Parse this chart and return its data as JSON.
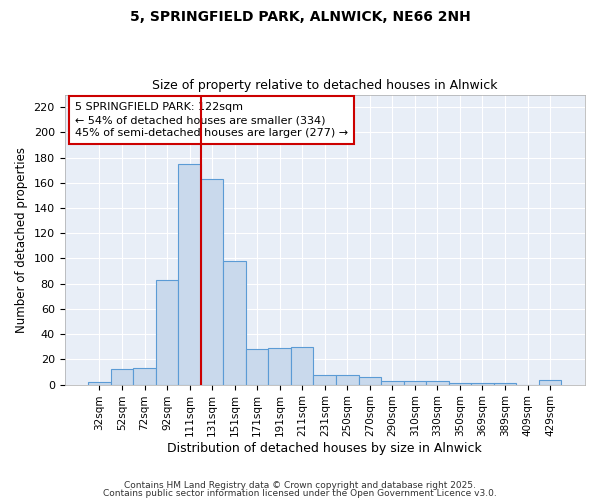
{
  "title1": "5, SPRINGFIELD PARK, ALNWICK, NE66 2NH",
  "title2": "Size of property relative to detached houses in Alnwick",
  "xlabel": "Distribution of detached houses by size in Alnwick",
  "ylabel": "Number of detached properties",
  "categories": [
    "32sqm",
    "52sqm",
    "72sqm",
    "92sqm",
    "111sqm",
    "131sqm",
    "151sqm",
    "171sqm",
    "191sqm",
    "211sqm",
    "231sqm",
    "250sqm",
    "270sqm",
    "290sqm",
    "310sqm",
    "330sqm",
    "350sqm",
    "369sqm",
    "389sqm",
    "409sqm",
    "429sqm"
  ],
  "values": [
    2,
    12,
    13,
    83,
    175,
    163,
    98,
    28,
    29,
    30,
    8,
    8,
    6,
    3,
    3,
    3,
    1,
    1,
    1,
    0,
    4
  ],
  "bar_color": "#c9d9ec",
  "bar_edge_color": "#5b9bd5",
  "property_line_color": "#cc0000",
  "annotation_line1": "5 SPRINGFIELD PARK: 122sqm",
  "annotation_line2": "← 54% of detached houses are smaller (334)",
  "annotation_line3": "45% of semi-detached houses are larger (277) →",
  "annotation_box_color": "#cc0000",
  "ylim": [
    0,
    230
  ],
  "yticks": [
    0,
    20,
    40,
    60,
    80,
    100,
    120,
    140,
    160,
    180,
    200,
    220
  ],
  "background_color": "#e8eef7",
  "grid_color": "#ffffff",
  "footer1": "Contains HM Land Registry data © Crown copyright and database right 2025.",
  "footer2": "Contains public sector information licensed under the Open Government Licence v3.0.",
  "bar_width": 1.0,
  "line_x_index": 5.0
}
